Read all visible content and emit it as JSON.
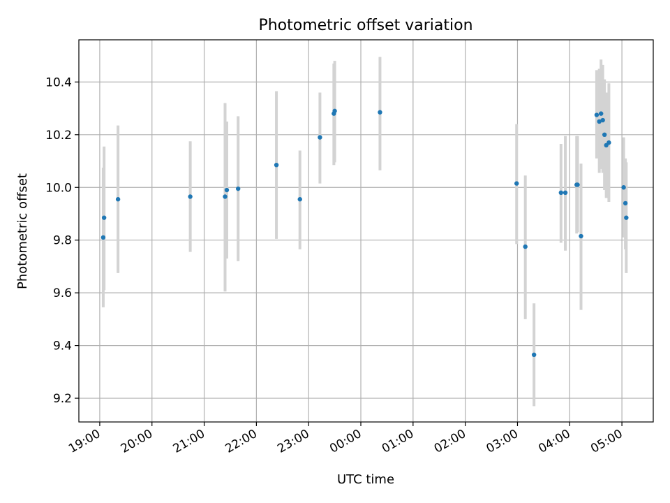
{
  "chart_data": {
    "type": "scatter",
    "title": "Photometric offset variation",
    "xlabel": "UTC time",
    "ylabel": "Photometric offset",
    "grid": true,
    "colors": {
      "marker": "#1f77b4",
      "errorbar": "#d3d3d3",
      "grid": "#b0b0b0"
    },
    "x_ticks": [
      "19:00",
      "20:00",
      "21:00",
      "22:00",
      "23:00",
      "00:00",
      "01:00",
      "02:00",
      "03:00",
      "04:00",
      "05:00"
    ],
    "y_ticks": [
      "9.2",
      "9.4",
      "9.6",
      "9.8",
      "10.0",
      "10.2",
      "10.4"
    ],
    "ylim": [
      9.11,
      10.56
    ],
    "xlim": [
      "18:36",
      "05:36"
    ],
    "series": [
      {
        "points": [
          {
            "x": "19:04",
            "y": 9.81,
            "err_low": 9.545,
            "err_high": 10.075
          },
          {
            "x": "19:05",
            "y": 9.885,
            "err_low": 9.61,
            "err_high": 10.155
          },
          {
            "x": "19:21",
            "y": 9.955,
            "err_low": 9.675,
            "err_high": 10.235
          },
          {
            "x": "20:44",
            "y": 9.965,
            "err_low": 9.755,
            "err_high": 10.175
          },
          {
            "x": "21:24",
            "y": 9.965,
            "err_low": 9.605,
            "err_high": 10.32
          },
          {
            "x": "21:26",
            "y": 9.99,
            "err_low": 9.73,
            "err_high": 10.25
          },
          {
            "x": "21:39",
            "y": 9.995,
            "err_low": 9.72,
            "err_high": 10.27
          },
          {
            "x": "22:23",
            "y": 10.085,
            "err_low": 9.805,
            "err_high": 10.365
          },
          {
            "x": "22:50",
            "y": 9.955,
            "err_low": 9.765,
            "err_high": 10.14
          },
          {
            "x": "23:13",
            "y": 10.19,
            "err_low": 10.015,
            "err_high": 10.36
          },
          {
            "x": "23:29",
            "y": 10.28,
            "err_low": 10.085,
            "err_high": 10.47
          },
          {
            "x": "23:30",
            "y": 10.29,
            "err_low": 10.095,
            "err_high": 10.48
          },
          {
            "x": "00:22",
            "y": 10.285,
            "err_low": 10.065,
            "err_high": 10.495
          },
          {
            "x": "02:59",
            "y": 10.015,
            "err_low": 9.785,
            "err_high": 10.24
          },
          {
            "x": "03:09",
            "y": 9.775,
            "err_low": 9.5,
            "err_high": 10.045
          },
          {
            "x": "03:19",
            "y": 9.365,
            "err_low": 9.17,
            "err_high": 9.56
          },
          {
            "x": "03:50",
            "y": 9.98,
            "err_low": 9.79,
            "err_high": 10.165
          },
          {
            "x": "03:55",
            "y": 9.98,
            "err_low": 9.76,
            "err_high": 10.195
          },
          {
            "x": "04:08",
            "y": 10.01,
            "err_low": 9.825,
            "err_high": 10.195
          },
          {
            "x": "04:09",
            "y": 10.01,
            "err_low": 9.83,
            "err_high": 10.195
          },
          {
            "x": "04:13",
            "y": 9.815,
            "err_low": 9.535,
            "err_high": 10.09
          },
          {
            "x": "04:31",
            "y": 10.275,
            "err_low": 10.11,
            "err_high": 10.445
          },
          {
            "x": "04:34",
            "y": 10.25,
            "err_low": 10.055,
            "err_high": 10.45
          },
          {
            "x": "04:36",
            "y": 10.28,
            "err_low": 10.07,
            "err_high": 10.485
          },
          {
            "x": "04:38",
            "y": 10.255,
            "err_low": 10.055,
            "err_high": 10.465
          },
          {
            "x": "04:40",
            "y": 10.2,
            "err_low": 9.99,
            "err_high": 10.41
          },
          {
            "x": "04:42",
            "y": 10.16,
            "err_low": 9.96,
            "err_high": 10.36
          },
          {
            "x": "04:45",
            "y": 10.17,
            "err_low": 9.945,
            "err_high": 10.395
          },
          {
            "x": "05:02",
            "y": 10.0,
            "err_low": 9.81,
            "err_high": 10.19
          },
          {
            "x": "05:04",
            "y": 9.94,
            "err_low": 9.765,
            "err_high": 10.11
          },
          {
            "x": "05:05",
            "y": 9.885,
            "err_low": 9.675,
            "err_high": 10.095
          }
        ]
      }
    ]
  }
}
